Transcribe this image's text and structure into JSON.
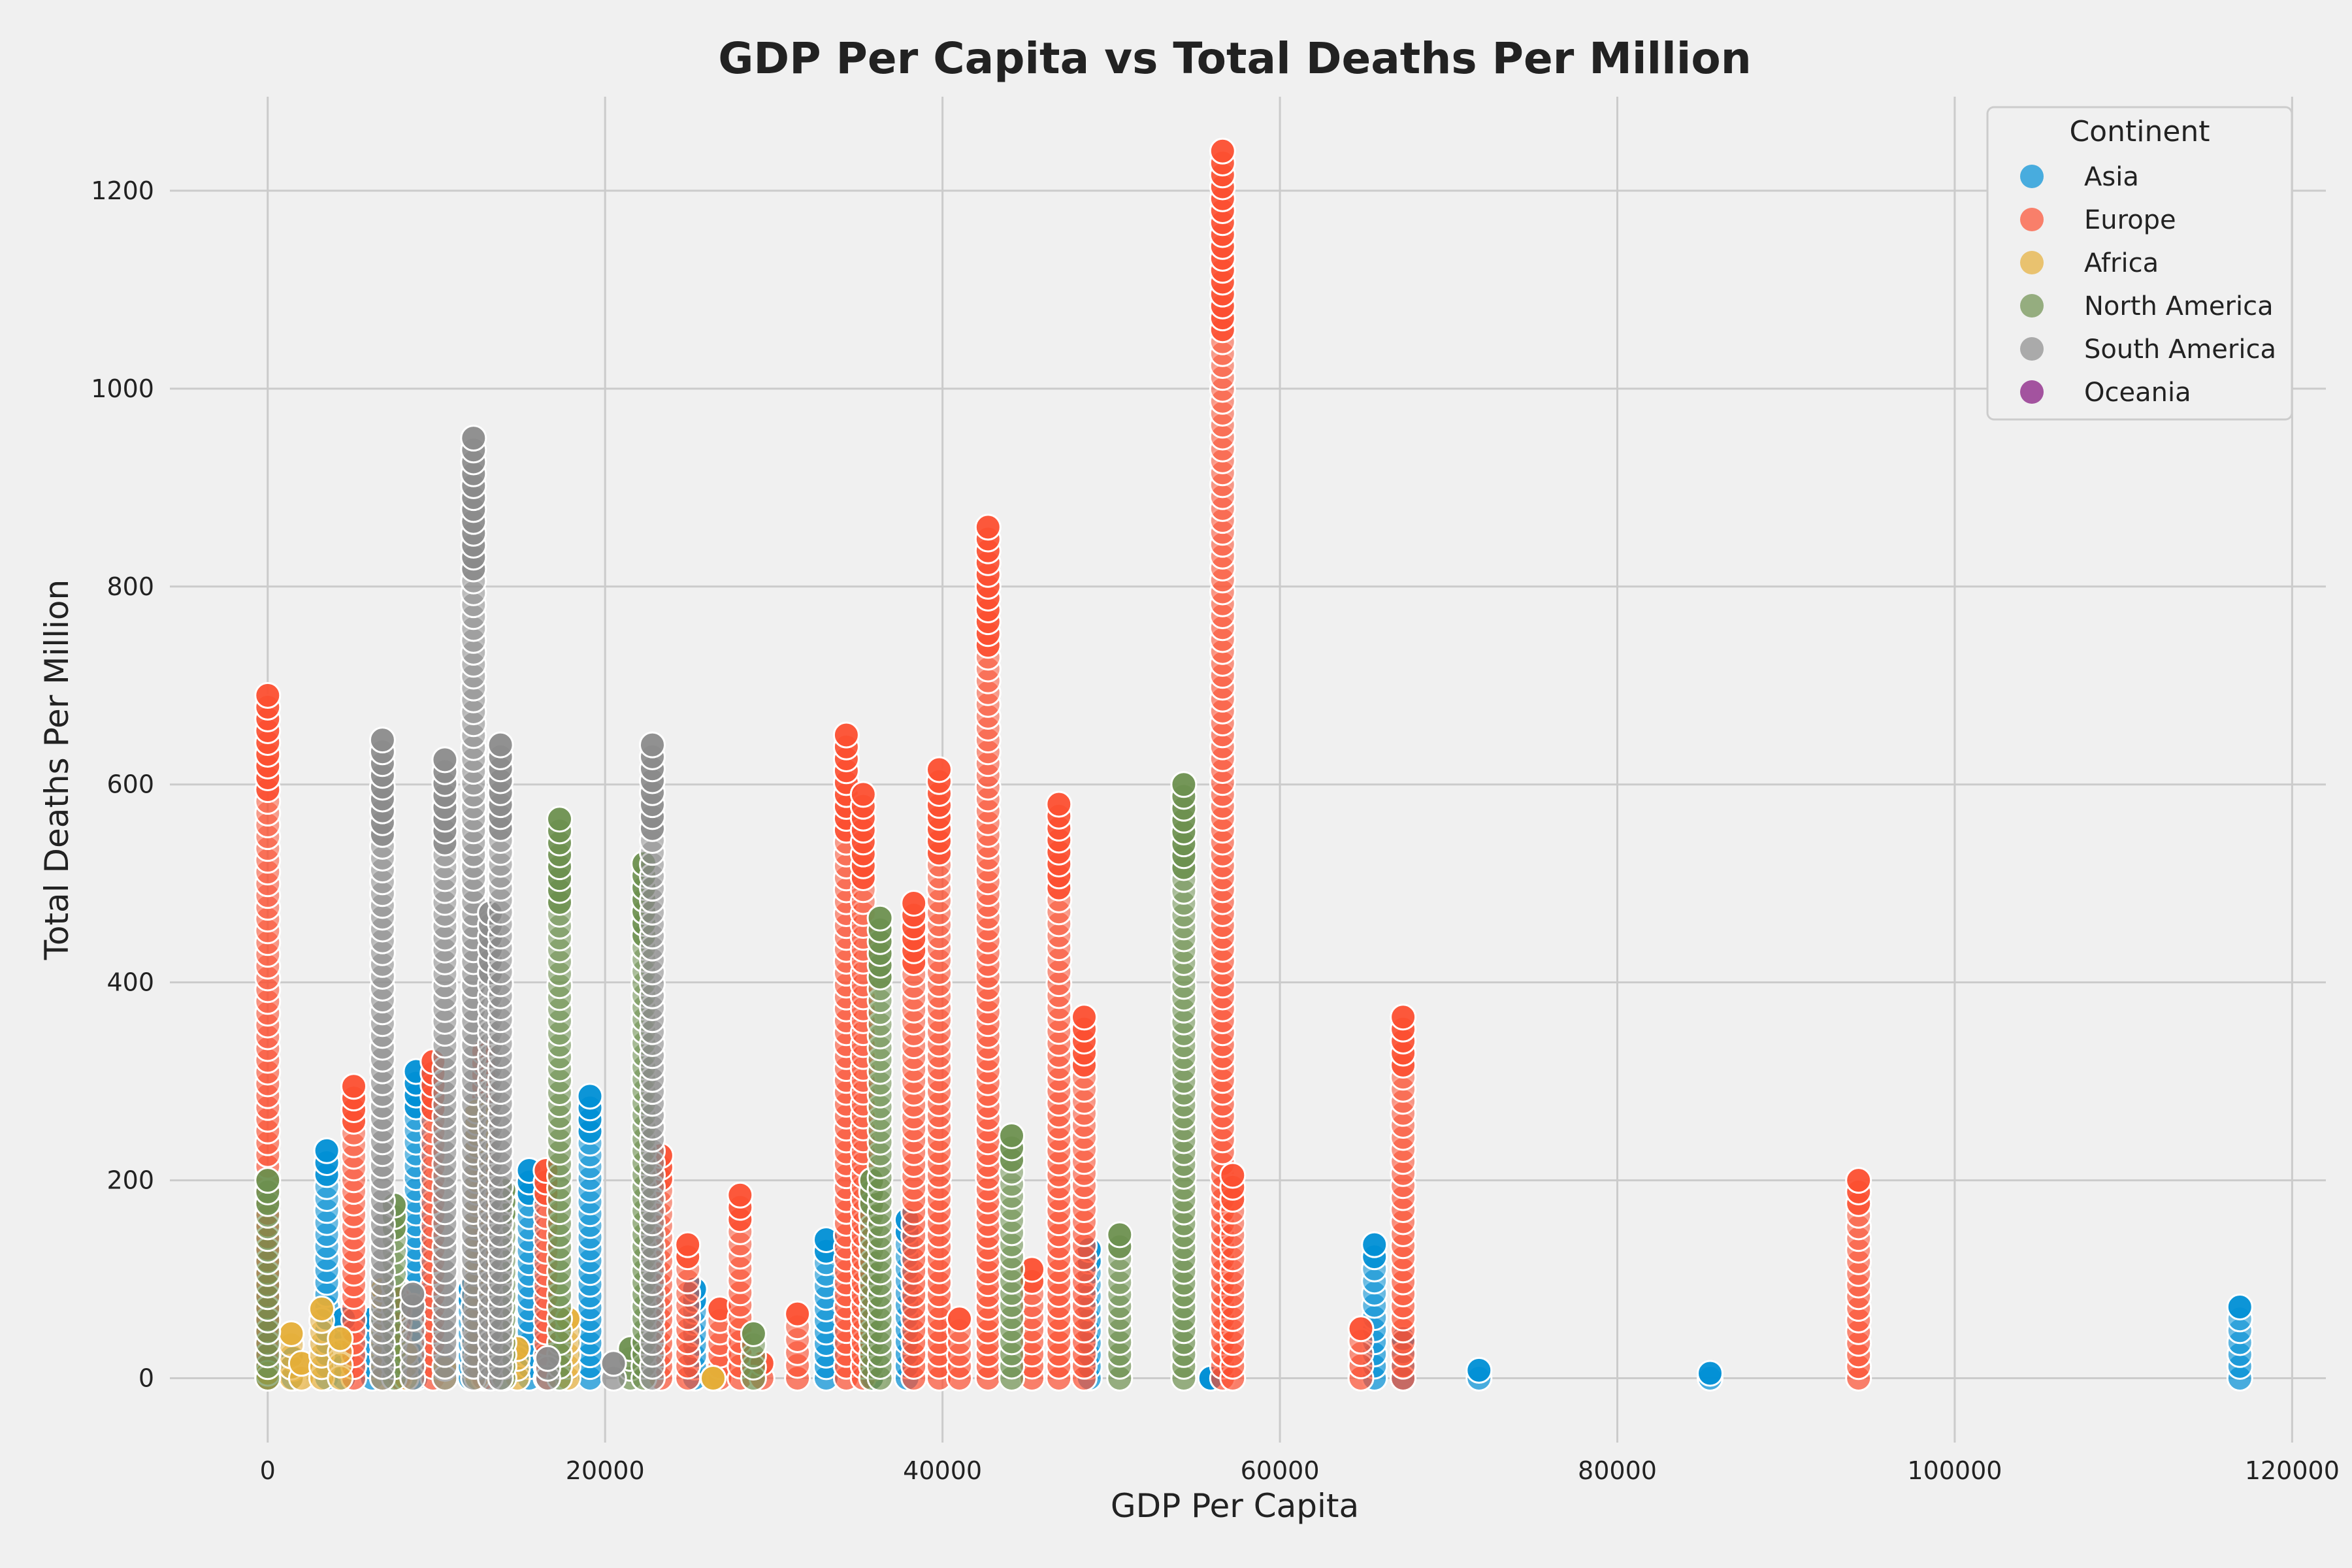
{
  "chart_data": {
    "type": "scatter",
    "title": "GDP Per Capita vs Total Deaths Per Million",
    "xlabel": "GDP Per Capita",
    "ylabel": "Total Deaths Per Million",
    "xlim": [
      -5800,
      122000
    ],
    "ylim": [
      -65,
      1295
    ],
    "xticks": [
      0,
      20000,
      40000,
      60000,
      80000,
      100000,
      120000
    ],
    "yticks": [
      0,
      200,
      400,
      600,
      800,
      1000,
      1200
    ],
    "grid": true,
    "legend": {
      "title": "Continent",
      "placement": "top-right"
    },
    "series": [
      {
        "name": "Asia",
        "color": "#008fd5",
        "columns": [
          [
            1500,
            0,
            20
          ],
          [
            3500,
            0,
            230
          ],
          [
            4500,
            0,
            60
          ],
          [
            6200,
            0,
            60
          ],
          [
            8800,
            0,
            310
          ],
          [
            12000,
            0,
            90
          ],
          [
            15500,
            0,
            210
          ],
          [
            19100,
            0,
            285
          ],
          [
            25300,
            0,
            90
          ],
          [
            33100,
            0,
            140
          ],
          [
            35900,
            0,
            10
          ],
          [
            37900,
            0,
            160
          ],
          [
            48700,
            0,
            130
          ],
          [
            55900,
            0,
            0
          ],
          [
            65600,
            0,
            135
          ],
          [
            67300,
            0,
            40
          ],
          [
            71800,
            0,
            8
          ],
          [
            85500,
            0,
            5
          ],
          [
            116900,
            0,
            72
          ]
        ]
      },
      {
        "name": "Europe",
        "color": "#fc4f30",
        "columns": [
          [
            0,
            0,
            690
          ],
          [
            5100,
            0,
            295
          ],
          [
            7800,
            0,
            80
          ],
          [
            9800,
            0,
            320
          ],
          [
            12800,
            0,
            330
          ],
          [
            16500,
            0,
            210
          ],
          [
            23300,
            0,
            225
          ],
          [
            24900,
            0,
            135
          ],
          [
            26800,
            0,
            70
          ],
          [
            28000,
            0,
            185
          ],
          [
            29300,
            0,
            15
          ],
          [
            31400,
            0,
            65
          ],
          [
            34300,
            0,
            650
          ],
          [
            35300,
            0,
            590
          ],
          [
            38300,
            0,
            480
          ],
          [
            39800,
            0,
            615
          ],
          [
            41000,
            0,
            60
          ],
          [
            42700,
            0,
            860
          ],
          [
            45300,
            0,
            110
          ],
          [
            46900,
            0,
            580
          ],
          [
            48400,
            0,
            365
          ],
          [
            56600,
            0,
            1240
          ],
          [
            57200,
            0,
            205
          ],
          [
            64800,
            0,
            50
          ],
          [
            67300,
            0,
            365
          ],
          [
            94300,
            0,
            200
          ]
        ]
      },
      {
        "name": "Africa",
        "color": "#e5ae38",
        "columns": [
          [
            0,
            0,
            5
          ],
          [
            1400,
            0,
            45
          ],
          [
            2000,
            0,
            15
          ],
          [
            3200,
            0,
            70
          ],
          [
            4300,
            0,
            40
          ],
          [
            6800,
            0,
            90
          ],
          [
            8200,
            0,
            25
          ],
          [
            10500,
            0,
            10
          ],
          [
            12400,
            0,
            270
          ],
          [
            14800,
            0,
            30
          ],
          [
            17800,
            0,
            60
          ],
          [
            26400,
            0,
            0
          ]
        ]
      },
      {
        "name": "North America",
        "color": "#6d904f",
        "columns": [
          [
            0,
            0,
            200
          ],
          [
            7500,
            0,
            175
          ],
          [
            14000,
            0,
            190
          ],
          [
            17300,
            0,
            565
          ],
          [
            21500,
            0,
            30
          ],
          [
            22300,
            0,
            520
          ],
          [
            28800,
            0,
            45
          ],
          [
            35800,
            0,
            200
          ],
          [
            36300,
            0,
            465
          ],
          [
            44100,
            0,
            245
          ],
          [
            50500,
            0,
            145
          ],
          [
            54300,
            0,
            600
          ]
        ]
      },
      {
        "name": "South America",
        "color": "#8b8b8b",
        "columns": [
          [
            6800,
            0,
            645
          ],
          [
            8600,
            0,
            85
          ],
          [
            10500,
            0,
            625
          ],
          [
            12200,
            0,
            950
          ],
          [
            13200,
            0,
            470
          ],
          [
            13800,
            0,
            640
          ],
          [
            16600,
            0,
            20
          ],
          [
            20500,
            0,
            15
          ],
          [
            22800,
            0,
            640
          ]
        ]
      },
      {
        "name": "Oceania",
        "color": "#810f7c",
        "columns": []
      }
    ]
  }
}
